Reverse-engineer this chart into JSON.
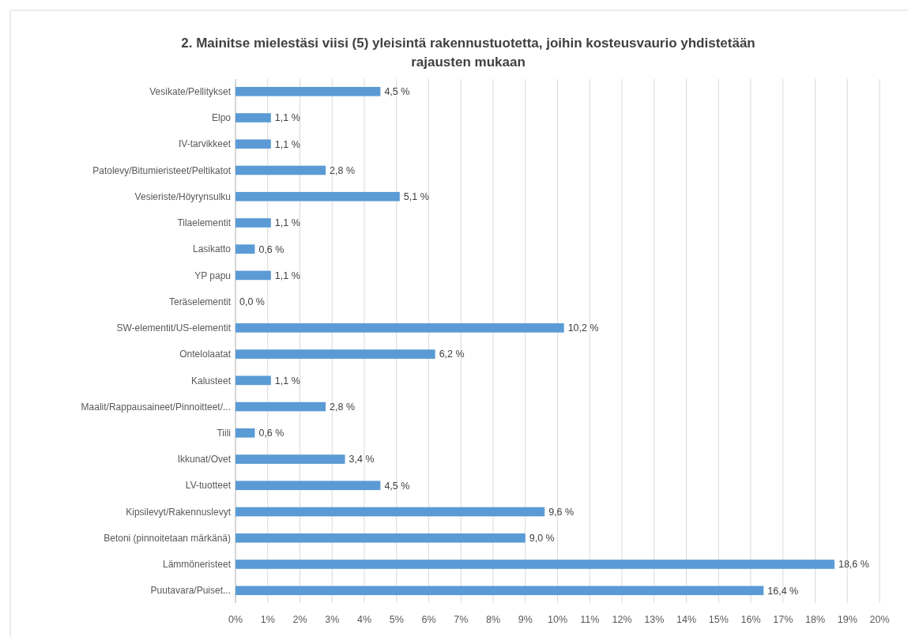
{
  "chart_data": {
    "type": "bar",
    "orientation": "horizontal",
    "title": "2. Mainitse mielestäsi viisi (5) yleisintä rakennustuotetta, joihin kosteusvaurio yhdistetään rajausten mukaan",
    "categories": [
      "Vesikate/Pellitykset",
      "Elpo",
      "IV-tarvikkeet",
      "Patolevy/Bitumieristeet/Peltikatot",
      "Vesieriste/Höyrynsulku",
      "Tilaelementit",
      "Lasikatto",
      "YP papu",
      "Teräselementit",
      "SW-elementit/US-elementit",
      "Ontelolaatat",
      "Kalusteet",
      "Maalit/Rappausaineet/Pinnoitteet/...",
      "Tiili",
      "Ikkunat/Ovet",
      "LV-tuotteet",
      "Kipsilevyt/Rakennuslevyt",
      "Betoni (pinnoitetaan märkänä)",
      "Lämmöneristeet",
      "Puutavara/Puiset..."
    ],
    "values": [
      4.5,
      1.1,
      1.1,
      2.8,
      5.1,
      1.1,
      0.6,
      1.1,
      0.0,
      10.2,
      6.2,
      1.1,
      2.8,
      0.6,
      3.4,
      4.5,
      9.6,
      9.0,
      18.6,
      16.4
    ],
    "value_labels": [
      "4,5 %",
      "1,1 %",
      "1,1 %",
      "2,8 %",
      "5,1 %",
      "1,1 %",
      "0,6 %",
      "1,1 %",
      "0,0 %",
      "10,2 %",
      "6,2 %",
      "1,1 %",
      "2,8 %",
      "0,6 %",
      "3,4 %",
      "4,5 %",
      "9,6 %",
      "9,0 %",
      "18,6 %",
      "16,4 %"
    ],
    "color": "#5b9bd5",
    "xlim": [
      0,
      20
    ],
    "xticks": [
      {
        "value": 0,
        "label": "0%"
      },
      {
        "value": 1,
        "label": "1%"
      },
      {
        "value": 2,
        "label": "2%"
      },
      {
        "value": 3,
        "label": "3%"
      },
      {
        "value": 4,
        "label": "4%"
      },
      {
        "value": 5,
        "label": "5%"
      },
      {
        "value": 6,
        "label": "6%"
      },
      {
        "value": 7,
        "label": "7%"
      },
      {
        "value": 8,
        "label": "8%"
      },
      {
        "value": 9,
        "label": "9%"
      },
      {
        "value": 10,
        "label": "10%"
      },
      {
        "value": 11,
        "label": "11%"
      },
      {
        "value": 12,
        "label": "12%"
      },
      {
        "value": 13,
        "label": "13%"
      },
      {
        "value": 14,
        "label": "14%"
      },
      {
        "value": 15,
        "label": "15%"
      },
      {
        "value": 16,
        "label": "16%"
      },
      {
        "value": 17,
        "label": "17%"
      },
      {
        "value": 18,
        "label": "18%"
      },
      {
        "value": 19,
        "label": "19%"
      },
      {
        "value": 20,
        "label": "20%"
      }
    ],
    "grid": "x"
  }
}
